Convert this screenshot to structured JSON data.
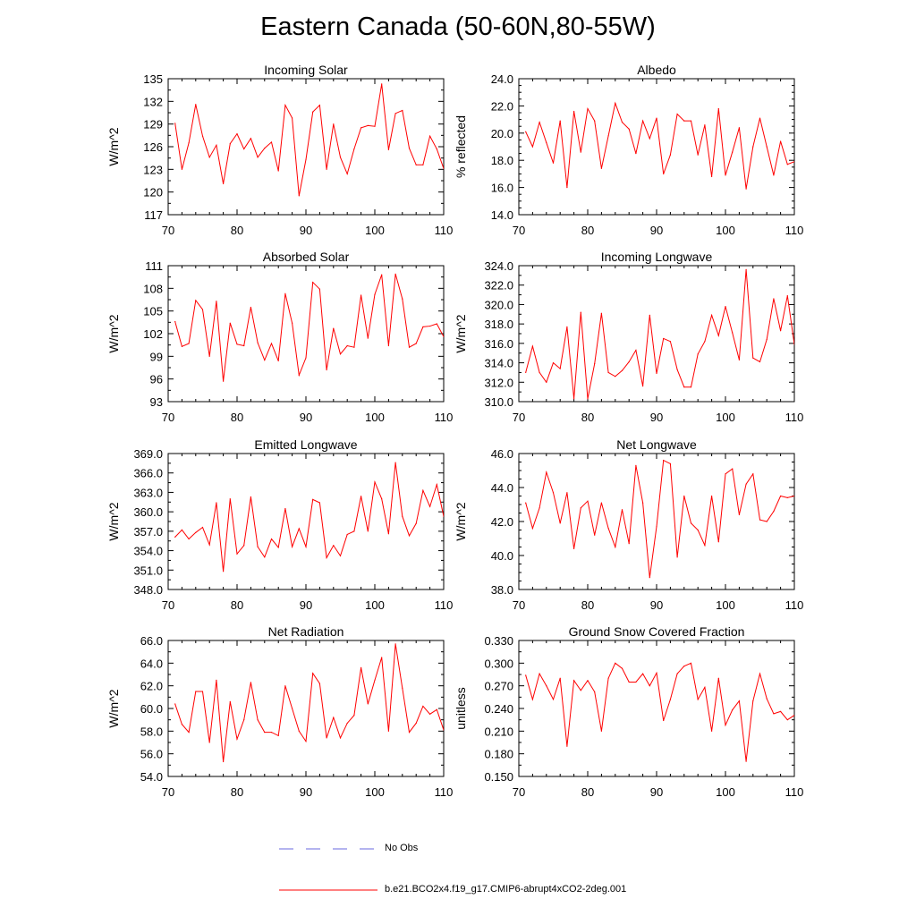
{
  "title": "Eastern Canada (50-60N,80-55W)",
  "colors": {
    "model": "#ff0000",
    "obs": "#0000ff",
    "axis": "#000000"
  },
  "legend": {
    "obs_label": "No Obs",
    "model_label": "b.e21.BCO2x4.f19_g17.CMIP6-abrupt4xCO2-2deg.001"
  },
  "chart_data": [
    {
      "type": "line",
      "title": "Incoming Solar",
      "ylabel": "W/m^2",
      "xlim": [
        70,
        110
      ],
      "ylim": [
        117,
        135
      ],
      "xticks": [
        70,
        80,
        90,
        100,
        110
      ],
      "xtick_labels": [
        "70",
        "80",
        "90",
        "100",
        "110"
      ],
      "yticks": [
        117,
        120,
        123,
        126,
        129,
        132,
        135
      ],
      "ytick_labels": [
        "117",
        "120",
        "123",
        "126",
        "129",
        "132",
        "135"
      ],
      "x": [
        71,
        72,
        73,
        74,
        75,
        76,
        77,
        78,
        79,
        80,
        81,
        82,
        83,
        84,
        85,
        86,
        87,
        88,
        89,
        90,
        91,
        92,
        93,
        94,
        95,
        96,
        97,
        98,
        99,
        100,
        101,
        102,
        103,
        104,
        105,
        106,
        107,
        108,
        109,
        110
      ],
      "series": [
        {
          "name": "b.e21.BCO2x4.f19_g17.CMIP6-abrupt4xCO2-2deg.001",
          "values": [
            129.1,
            123.0,
            126.5,
            131.6,
            127.4,
            124.6,
            126.2,
            121.1,
            126.4,
            127.7,
            125.7,
            127.1,
            124.6,
            125.8,
            126.6,
            122.8,
            131.5,
            129.8,
            119.5,
            124.3,
            130.6,
            131.5,
            123.0,
            129.0,
            124.6,
            122.4,
            125.7,
            128.5,
            128.8,
            128.7,
            134.3,
            125.6,
            130.4,
            130.8,
            125.8,
            123.6,
            123.6,
            127.4,
            125.7,
            123.1
          ]
        }
      ]
    },
    {
      "type": "line",
      "title": "Albedo",
      "ylabel": "% reflected",
      "xlim": [
        70,
        110
      ],
      "ylim": [
        14.0,
        24.0
      ],
      "xticks": [
        70,
        80,
        90,
        100,
        110
      ],
      "xtick_labels": [
        "70",
        "80",
        "90",
        "100",
        "110"
      ],
      "yticks": [
        14,
        16,
        18,
        20,
        22,
        24
      ],
      "ytick_labels": [
        "14.0",
        "16.0",
        "18.0",
        "20.0",
        "22.0",
        "24.0"
      ],
      "x": [
        71,
        72,
        73,
        74,
        75,
        76,
        77,
        78,
        79,
        80,
        81,
        82,
        83,
        84,
        85,
        86,
        87,
        88,
        89,
        90,
        91,
        92,
        93,
        94,
        95,
        96,
        97,
        98,
        99,
        100,
        101,
        102,
        103,
        104,
        105,
        106,
        107,
        108,
        109,
        110
      ],
      "series": [
        {
          "name": "b.e21.BCO2x4.f19_g17.CMIP6-abrupt4xCO2-2deg.001",
          "values": [
            20.1,
            19.0,
            20.8,
            19.3,
            17.8,
            20.9,
            16.0,
            21.6,
            18.6,
            21.8,
            20.9,
            17.4,
            19.8,
            22.2,
            20.8,
            20.3,
            18.5,
            20.9,
            19.6,
            21.1,
            17.0,
            18.4,
            21.4,
            20.9,
            20.9,
            18.4,
            20.6,
            16.8,
            21.8,
            16.9,
            18.6,
            20.4,
            15.9,
            19.0,
            21.1,
            19.0,
            16.9,
            19.4,
            17.7,
            17.9
          ]
        }
      ]
    },
    {
      "type": "line",
      "title": "Absorbed Solar",
      "ylabel": "W/m^2",
      "xlim": [
        70,
        110
      ],
      "ylim": [
        93,
        111
      ],
      "xticks": [
        70,
        80,
        90,
        100,
        110
      ],
      "xtick_labels": [
        "70",
        "80",
        "90",
        "100",
        "110"
      ],
      "yticks": [
        93,
        96,
        99,
        102,
        105,
        108,
        111
      ],
      "ytick_labels": [
        "93",
        "96",
        "99",
        "102",
        "105",
        "108",
        "111"
      ],
      "x": [
        71,
        72,
        73,
        74,
        75,
        76,
        77,
        78,
        79,
        80,
        81,
        82,
        83,
        84,
        85,
        86,
        87,
        88,
        89,
        90,
        91,
        92,
        93,
        94,
        95,
        96,
        97,
        98,
        99,
        100,
        101,
        102,
        103,
        104,
        105,
        106,
        107,
        108,
        109,
        110
      ],
      "series": [
        {
          "name": "b.e21.BCO2x4.f19_g17.CMIP6-abrupt4xCO2-2deg.001",
          "values": [
            103.6,
            100.3,
            100.7,
            106.4,
            105.2,
            99.0,
            106.3,
            95.7,
            103.4,
            100.6,
            100.4,
            105.5,
            100.8,
            98.5,
            100.7,
            98.4,
            107.3,
            103.4,
            96.5,
            98.8,
            108.8,
            107.9,
            97.2,
            102.7,
            99.3,
            100.4,
            100.2,
            107.1,
            101.4,
            107.2,
            109.8,
            100.4,
            109.9,
            106.6,
            100.2,
            100.7,
            102.9,
            103.0,
            103.3,
            101.6
          ]
        }
      ]
    },
    {
      "type": "line",
      "title": "Incoming Longwave",
      "ylabel": "W/m^2",
      "xlim": [
        70,
        110
      ],
      "ylim": [
        310.0,
        324.0
      ],
      "xticks": [
        70,
        80,
        90,
        100,
        110
      ],
      "xtick_labels": [
        "70",
        "80",
        "90",
        "100",
        "110"
      ],
      "yticks": [
        310,
        312,
        314,
        316,
        318,
        320,
        322,
        324
      ],
      "ytick_labels": [
        "310.0",
        "312.0",
        "314.0",
        "316.0",
        "318.0",
        "320.0",
        "322.0",
        "324.0"
      ],
      "x": [
        71,
        72,
        73,
        74,
        75,
        76,
        77,
        78,
        79,
        80,
        81,
        82,
        83,
        84,
        85,
        86,
        87,
        88,
        89,
        90,
        91,
        92,
        93,
        94,
        95,
        96,
        97,
        98,
        99,
        100,
        101,
        102,
        103,
        104,
        105,
        106,
        107,
        108,
        109,
        110
      ],
      "series": [
        {
          "name": "b.e21.BCO2x4.f19_g17.CMIP6-abrupt4xCO2-2deg.001",
          "values": [
            313.0,
            315.7,
            313.0,
            312.0,
            314.0,
            313.4,
            317.7,
            310.3,
            319.2,
            310.3,
            313.9,
            319.1,
            313.0,
            312.6,
            313.2,
            314.1,
            315.3,
            311.6,
            318.9,
            312.9,
            316.5,
            316.2,
            313.3,
            311.5,
            311.5,
            314.9,
            316.2,
            318.9,
            316.8,
            319.8,
            317.1,
            314.3,
            323.6,
            314.5,
            314.1,
            316.4,
            320.6,
            317.3,
            320.9,
            315.9
          ]
        }
      ]
    },
    {
      "type": "line",
      "title": "Emitted Longwave",
      "ylabel": "W/m^2",
      "xlim": [
        70,
        110
      ],
      "ylim": [
        348.0,
        369.0
      ],
      "xticks": [
        70,
        80,
        90,
        100,
        110
      ],
      "xtick_labels": [
        "70",
        "80",
        "90",
        "100",
        "110"
      ],
      "yticks": [
        348,
        351,
        354,
        357,
        360,
        363,
        366,
        369
      ],
      "ytick_labels": [
        "348.0",
        "351.0",
        "354.0",
        "357.0",
        "360.0",
        "363.0",
        "366.0",
        "369.0"
      ],
      "x": [
        71,
        72,
        73,
        74,
        75,
        76,
        77,
        78,
        79,
        80,
        81,
        82,
        83,
        84,
        85,
        86,
        87,
        88,
        89,
        90,
        91,
        92,
        93,
        94,
        95,
        96,
        97,
        98,
        99,
        100,
        101,
        102,
        103,
        104,
        105,
        106,
        107,
        108,
        109,
        110
      ],
      "series": [
        {
          "name": "b.e21.BCO2x4.f19_g17.CMIP6-abrupt4xCO2-2deg.001",
          "values": [
            356.1,
            357.2,
            355.8,
            356.8,
            357.6,
            354.9,
            361.4,
            350.8,
            362.0,
            353.5,
            354.8,
            362.3,
            354.6,
            353.0,
            355.8,
            354.5,
            360.5,
            354.6,
            357.4,
            354.6,
            361.9,
            361.4,
            352.9,
            354.8,
            353.2,
            356.5,
            357.0,
            362.4,
            357.0,
            364.6,
            362.0,
            356.6,
            367.6,
            359.3,
            356.3,
            358.2,
            363.3,
            360.8,
            364.2,
            359.3
          ]
        }
      ]
    },
    {
      "type": "line",
      "title": "Net Longwave",
      "ylabel": "W/m^2",
      "xlim": [
        70,
        110
      ],
      "ylim": [
        38.0,
        46.0
      ],
      "xticks": [
        70,
        80,
        90,
        100,
        110
      ],
      "xtick_labels": [
        "70",
        "80",
        "90",
        "100",
        "110"
      ],
      "yticks": [
        38,
        40,
        42,
        44,
        46
      ],
      "ytick_labels": [
        "38.0",
        "40.0",
        "42.0",
        "44.0",
        "46.0"
      ],
      "x": [
        71,
        72,
        73,
        74,
        75,
        76,
        77,
        78,
        79,
        80,
        81,
        82,
        83,
        84,
        85,
        86,
        87,
        88,
        89,
        90,
        91,
        92,
        93,
        94,
        95,
        96,
        97,
        98,
        99,
        100,
        101,
        102,
        103,
        104,
        105,
        106,
        107,
        108,
        109,
        110
      ],
      "series": [
        {
          "name": "b.e21.BCO2x4.f19_g17.CMIP6-abrupt4xCO2-2deg.001",
          "values": [
            43.1,
            41.6,
            42.8,
            44.9,
            43.7,
            41.9,
            43.7,
            40.4,
            42.8,
            43.2,
            41.2,
            43.1,
            41.6,
            40.5,
            42.7,
            40.7,
            45.3,
            43.1,
            38.7,
            41.7,
            45.6,
            45.4,
            39.9,
            43.5,
            41.9,
            41.5,
            40.6,
            43.5,
            40.8,
            44.8,
            45.1,
            42.4,
            44.2,
            44.8,
            42.1,
            42.0,
            42.6,
            43.5,
            43.4,
            43.5
          ]
        }
      ]
    },
    {
      "type": "line",
      "title": "Net Radiation",
      "ylabel": "W/m^2",
      "xlim": [
        70,
        110
      ],
      "ylim": [
        54.0,
        66.0
      ],
      "xticks": [
        70,
        80,
        90,
        100,
        110
      ],
      "xtick_labels": [
        "70",
        "80",
        "90",
        "100",
        "110"
      ],
      "yticks": [
        54,
        56,
        58,
        60,
        62,
        64,
        66
      ],
      "ytick_labels": [
        "54.0",
        "56.0",
        "58.0",
        "60.0",
        "62.0",
        "64.0",
        "66.0"
      ],
      "x": [
        71,
        72,
        73,
        74,
        75,
        76,
        77,
        78,
        79,
        80,
        81,
        82,
        83,
        84,
        85,
        86,
        87,
        88,
        89,
        90,
        91,
        92,
        93,
        94,
        95,
        96,
        97,
        98,
        99,
        100,
        101,
        102,
        103,
        104,
        105,
        106,
        107,
        108,
        109,
        110
      ],
      "series": [
        {
          "name": "b.e21.BCO2x4.f19_g17.CMIP6-abrupt4xCO2-2deg.001",
          "values": [
            60.4,
            58.6,
            57.9,
            61.5,
            61.5,
            57.0,
            62.5,
            55.3,
            60.6,
            57.3,
            59.0,
            62.3,
            59.0,
            57.9,
            57.9,
            57.6,
            62.0,
            60.0,
            58.0,
            57.1,
            63.1,
            62.2,
            57.4,
            59.2,
            57.4,
            58.7,
            59.4,
            63.6,
            60.4,
            62.5,
            64.5,
            58.0,
            65.7,
            61.8,
            57.9,
            58.7,
            60.2,
            59.5,
            59.9,
            58.1
          ]
        }
      ]
    },
    {
      "type": "line",
      "title": "Ground Snow Covered Fraction",
      "ylabel": "unitless",
      "xlim": [
        70,
        110
      ],
      "ylim": [
        0.15,
        0.33
      ],
      "xticks": [
        70,
        80,
        90,
        100,
        110
      ],
      "xtick_labels": [
        "70",
        "80",
        "90",
        "100",
        "110"
      ],
      "yticks": [
        0.15,
        0.18,
        0.21,
        0.24,
        0.27,
        0.3,
        0.33
      ],
      "ytick_labels": [
        "0.150",
        "0.180",
        "0.210",
        "0.240",
        "0.270",
        "0.300",
        "0.330"
      ],
      "x": [
        71,
        72,
        73,
        74,
        75,
        76,
        77,
        78,
        79,
        80,
        81,
        82,
        83,
        84,
        85,
        86,
        87,
        88,
        89,
        90,
        91,
        92,
        93,
        94,
        95,
        96,
        97,
        98,
        99,
        100,
        101,
        102,
        103,
        104,
        105,
        106,
        107,
        108,
        109,
        110
      ],
      "series": [
        {
          "name": "b.e21.BCO2x4.f19_g17.CMIP6-abrupt4xCO2-2deg.001",
          "values": [
            0.284,
            0.252,
            0.286,
            0.27,
            0.252,
            0.28,
            0.19,
            0.277,
            0.264,
            0.277,
            0.262,
            0.21,
            0.28,
            0.3,
            0.293,
            0.275,
            0.275,
            0.286,
            0.27,
            0.287,
            0.224,
            0.252,
            0.286,
            0.296,
            0.3,
            0.252,
            0.268,
            0.21,
            0.28,
            0.218,
            0.238,
            0.25,
            0.17,
            0.25,
            0.286,
            0.253,
            0.233,
            0.236,
            0.225,
            0.231
          ]
        }
      ]
    }
  ]
}
